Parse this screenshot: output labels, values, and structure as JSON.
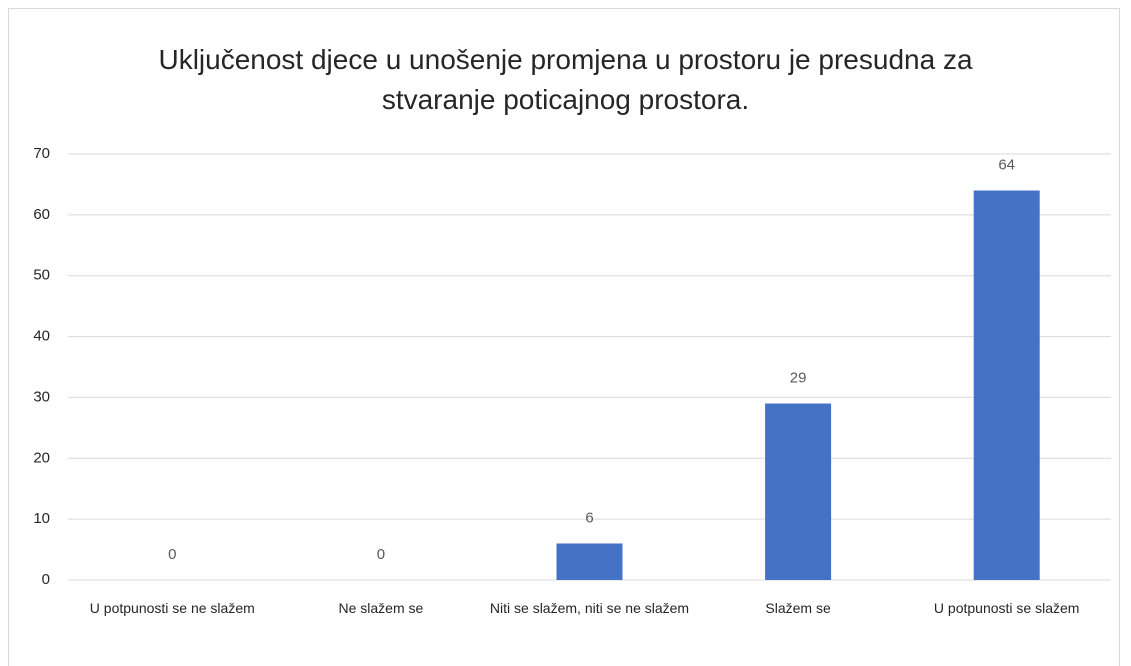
{
  "chart_data": {
    "type": "bar",
    "title": "Uključenost djece u unošenje promjena u prostoru je presudna za stvaranje poticajnog prostora.",
    "categories": [
      "U potpunosti se ne slažem",
      "Ne slažem se",
      "Niti se slažem, niti se ne slažem",
      "Slažem se",
      "U potpunosti se slažem"
    ],
    "values": [
      0,
      0,
      6,
      29,
      64
    ],
    "color": "#4472c4",
    "ylim": [
      0,
      70
    ],
    "yticks": [
      0,
      10,
      20,
      30,
      40,
      50,
      60,
      70
    ],
    "grid": true
  }
}
